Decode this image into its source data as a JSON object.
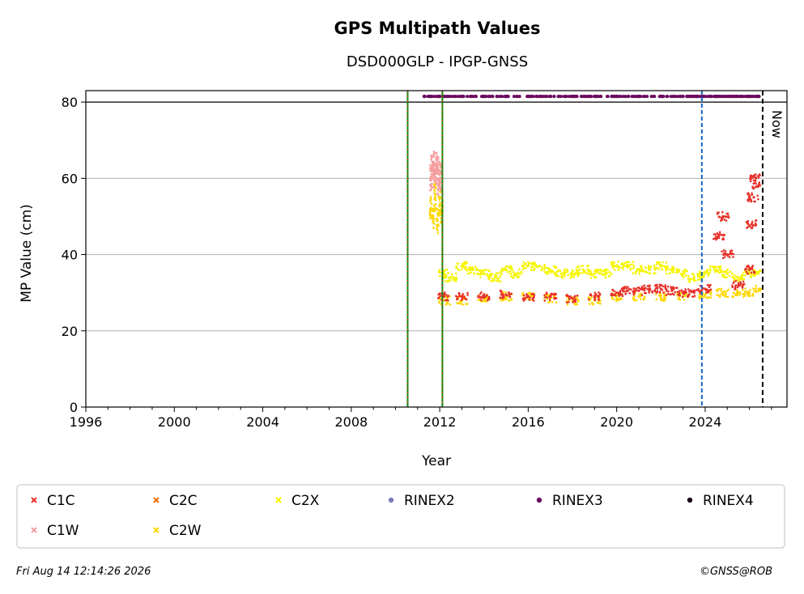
{
  "chart_data": {
    "type": "scatter",
    "title": "GPS Multipath Values",
    "subtitle": "DSD000GLP - IPGP-GNSS",
    "xlabel": "Year",
    "ylabel": "MP Value (cm)",
    "xlim": [
      1996.0,
      2027.7
    ],
    "ylim": [
      0,
      83
    ],
    "x_ticks": [
      1996,
      2000,
      2004,
      2008,
      2012,
      2016,
      2020,
      2024
    ],
    "x_tick_labels": [
      "1996",
      "2000",
      "2004",
      "2008",
      "2012",
      "2016",
      "2020",
      "2024"
    ],
    "y_ticks": [
      0,
      20,
      40,
      60,
      80
    ],
    "y_tick_labels": [
      "0",
      "20",
      "40",
      "60",
      "80"
    ],
    "grid": "horizontal",
    "now_label": "Now",
    "reference_lines": [
      {
        "x": 2010.55,
        "style": "green-red-dotted"
      },
      {
        "x": 2012.12,
        "style": "green-red-dotted"
      },
      {
        "x": 2023.85,
        "style": "blue-dashed"
      },
      {
        "x": 2026.6,
        "style": "black-dashed"
      }
    ],
    "horizontal_line": 80,
    "legend": [
      {
        "name": "C1C",
        "color": "#e8312a",
        "marker": "x"
      },
      {
        "name": "C2C",
        "color": "#f07010",
        "marker": "x"
      },
      {
        "name": "C2X",
        "color": "#f5f500",
        "marker": "x"
      },
      {
        "name": "RINEX2",
        "color": "#7b7bbf",
        "marker": "dot"
      },
      {
        "name": "RINEX3",
        "color": "#6b0a5e",
        "marker": "dot"
      },
      {
        "name": "RINEX4",
        "color": "#1a0a1a",
        "marker": "dot"
      },
      {
        "name": "C1W",
        "color": "#f59f9f",
        "marker": "x"
      },
      {
        "name": "C2W",
        "color": "#ffd700",
        "marker": "x"
      }
    ],
    "series": [
      {
        "name": "C1W",
        "color": "#f59f9f",
        "x": [
          2011.6,
          2011.65,
          2011.7,
          2011.75,
          2011.8,
          2011.85,
          2011.9,
          2011.95,
          2012.0,
          2012.05
        ],
        "y": [
          60,
          63,
          61,
          64,
          59,
          62,
          65,
          58,
          61,
          60
        ]
      },
      {
        "name": "C2W",
        "color": "#ffd700",
        "x": [
          2011.6,
          2011.7,
          2011.8,
          2011.9,
          2012.0,
          2012.1,
          2012.2,
          2013.0,
          2014.0,
          2015.0,
          2016.0,
          2017.0,
          2018.0,
          2019.0,
          2020.0,
          2021.0,
          2022.0,
          2023.0,
          2024.0,
          2024.8,
          2025.5,
          2026.0,
          2026.5
        ],
        "y": [
          52,
          50,
          55,
          49,
          53,
          51,
          28,
          28,
          28.5,
          29,
          29,
          28.5,
          28,
          28,
          29,
          29,
          29,
          29,
          29.5,
          30,
          30,
          30,
          31
        ]
      },
      {
        "name": "C2X",
        "color": "#f5f500",
        "x": [
          2012.2,
          2012.5,
          2013.0,
          2013.5,
          2014.0,
          2014.5,
          2015.0,
          2015.5,
          2016.0,
          2016.5,
          2017.0,
          2017.5,
          2018.0,
          2018.5,
          2019.0,
          2019.5,
          2020.0,
          2020.5,
          2021.0,
          2021.5,
          2022.0,
          2022.5,
          2023.0,
          2023.5,
          2024.0,
          2024.5,
          2025.0,
          2025.5,
          2026.0,
          2026.4
        ],
        "y": [
          35,
          34,
          37,
          36,
          35,
          34,
          36,
          35,
          37,
          37,
          36,
          35,
          35,
          36,
          35,
          35,
          37,
          37,
          36,
          36,
          37,
          36,
          35,
          34,
          35,
          36,
          35,
          34,
          35,
          35
        ]
      },
      {
        "name": "C1C",
        "color": "#e8312a",
        "x": [
          2012.2,
          2013.0,
          2014.0,
          2015.0,
          2016.0,
          2017.0,
          2018.0,
          2019.0,
          2020.0,
          2020.5,
          2021.0,
          2021.5,
          2022.0,
          2022.5,
          2023.0,
          2023.5,
          2024.0,
          2024.6,
          2024.8,
          2025.0,
          2025.5,
          2026.0,
          2026.1,
          2026.2,
          2026.3,
          2026.4
        ],
        "y": [
          29,
          29,
          29,
          29.5,
          29,
          29,
          28.5,
          29,
          30,
          30.5,
          30.5,
          31,
          31,
          30.5,
          30,
          30,
          31,
          45,
          50,
          40,
          32,
          36,
          48,
          55,
          60,
          58
        ]
      },
      {
        "name": "RINEX3",
        "color": "#6b0a5e",
        "x": [
          2011.3,
          2012.0,
          2013.0,
          2014.0,
          2015.0,
          2016.0,
          2017.0,
          2018.0,
          2019.0,
          2020.0,
          2021.0,
          2022.0,
          2023.0,
          2023.6,
          2024.2,
          2024.8,
          2025.4,
          2026.0,
          2026.4
        ],
        "y": [
          81.5,
          81.5,
          81.5,
          81.5,
          81.5,
          81.5,
          81.5,
          81.5,
          81.5,
          81.5,
          81.5,
          81.5,
          81.5,
          81.5,
          81.5,
          81.5,
          81.5,
          81.5,
          81.5
        ]
      }
    ]
  },
  "footer": {
    "timestamp": "Fri Aug 14 12:14:26 2026",
    "copyright": "©GNSS@ROB"
  }
}
